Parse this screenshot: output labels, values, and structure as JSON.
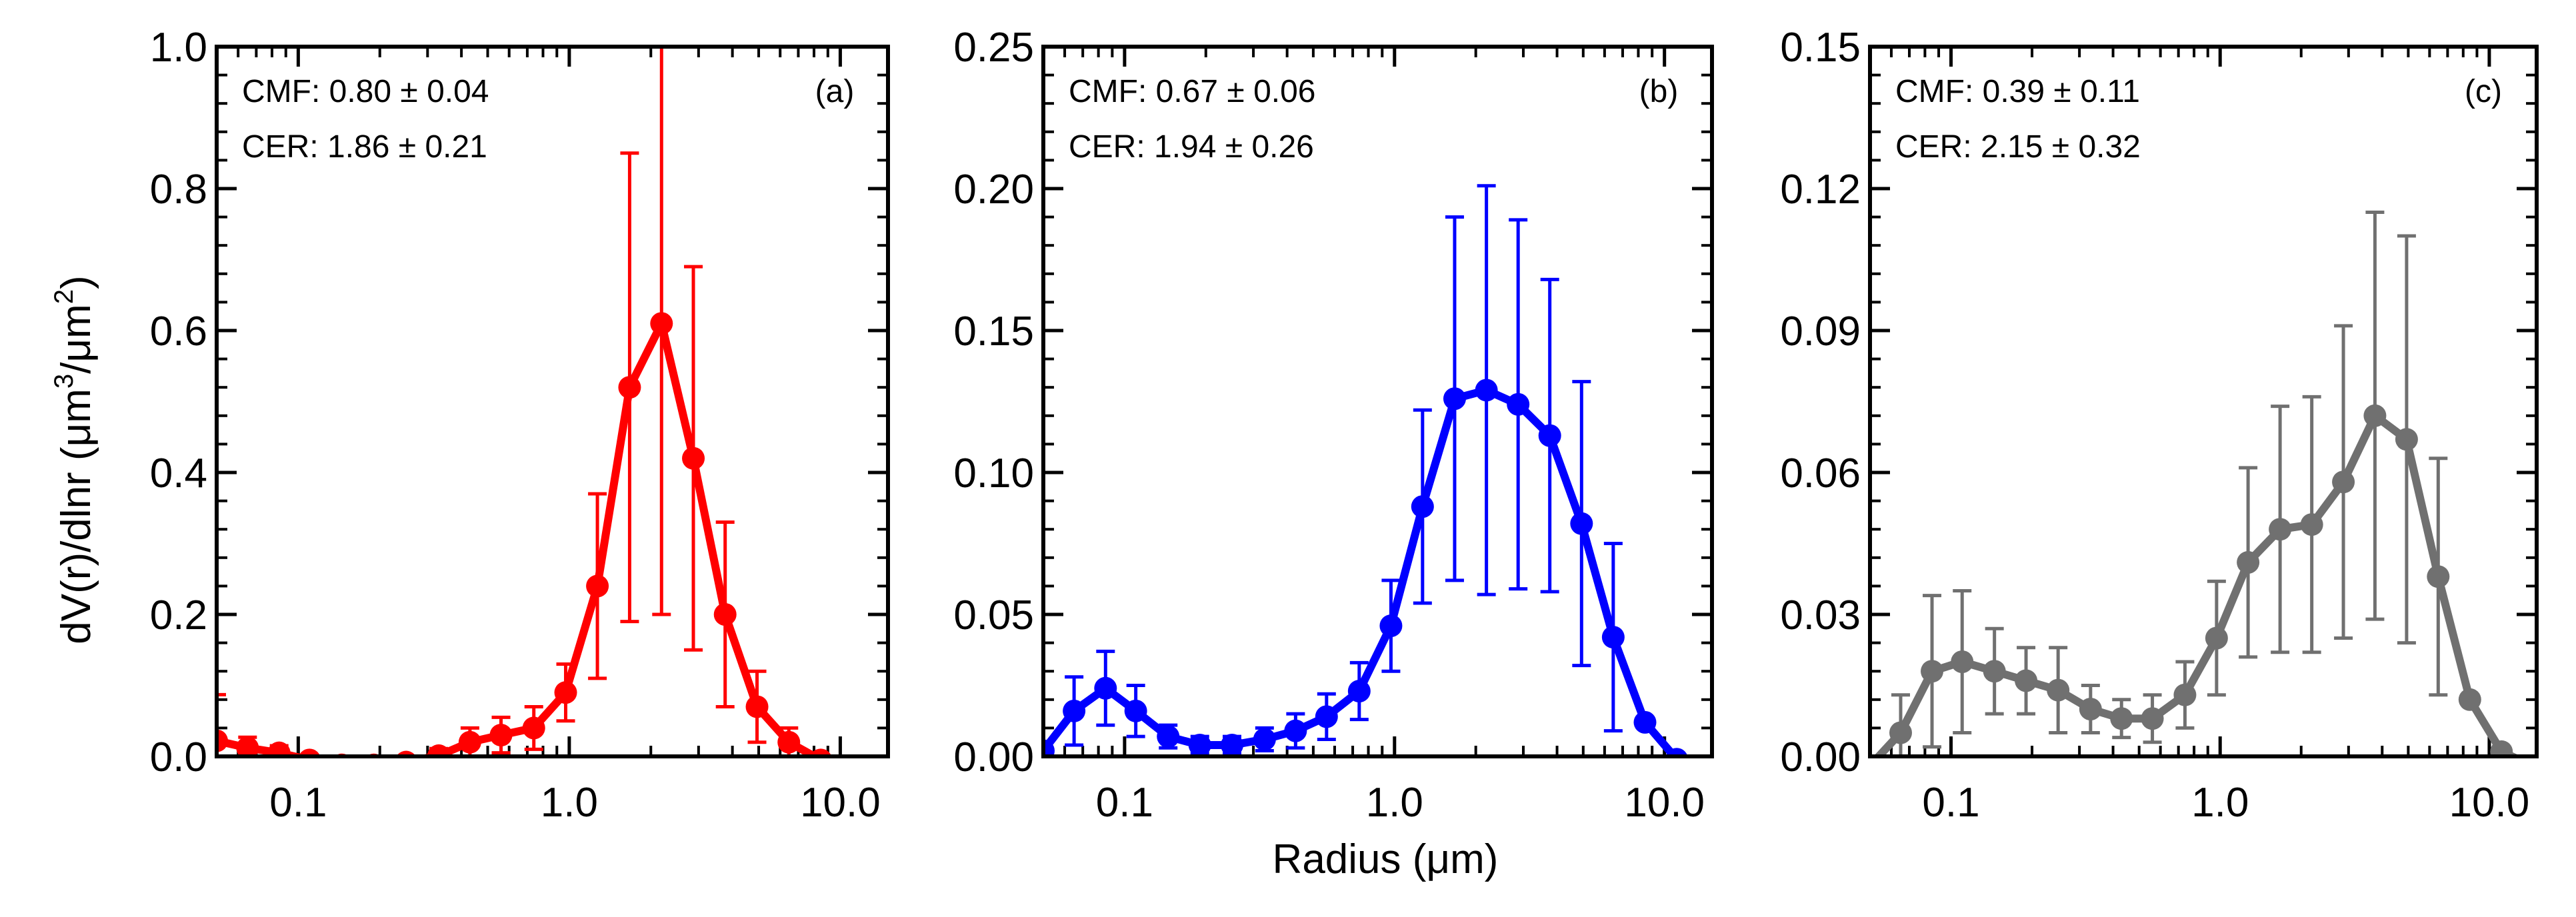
{
  "chart_data": [
    {
      "type": "line",
      "panel": "(a)",
      "color": "#ff0000",
      "xscale": "log",
      "xlim": [
        0.05,
        15
      ],
      "xticks": [
        0.1,
        1.0,
        10.0
      ],
      "xtick_labels": [
        "0.1",
        "1.0",
        "10.0"
      ],
      "ylim": [
        0,
        1.0
      ],
      "yticks": [
        0.0,
        0.2,
        0.4,
        0.6,
        0.8,
        1.0
      ],
      "ytick_labels": [
        "0.0",
        "0.2",
        "0.4",
        "0.6",
        "0.8",
        "1.0"
      ],
      "annotations": {
        "cmf": "CMF: 0.80 ± 0.04",
        "cer": "CER: 1.86 ± 0.21"
      },
      "series": [
        {
          "name": "(a)",
          "x": [
            0.05,
            0.065,
            0.085,
            0.11,
            0.145,
            0.19,
            0.25,
            0.33,
            0.43,
            0.56,
            0.74,
            0.97,
            1.27,
            1.67,
            2.19,
            2.87,
            3.76,
            4.93,
            6.46,
            8.47,
            11.1,
            14.5
          ],
          "y": [
            0.022,
            0.012,
            0.005,
            -0.005,
            -0.012,
            -0.012,
            -0.008,
            0.001,
            0.02,
            0.03,
            0.04,
            0.09,
            0.24,
            0.52,
            0.61,
            0.42,
            0.2,
            0.07,
            0.02,
            -0.005,
            -0.015,
            -0.015
          ],
          "err": [
            0.065,
            0.015,
            0.01,
            0.0,
            0.0,
            0.0,
            0.0,
            0.01,
            0.02,
            0.025,
            0.03,
            0.04,
            0.13,
            0.33,
            0.41,
            0.27,
            0.13,
            0.05,
            0.02,
            0.0,
            0.0,
            0.0
          ]
        }
      ]
    },
    {
      "type": "line",
      "panel": "(b)",
      "color": "#0000ff",
      "xscale": "log",
      "xlim": [
        0.05,
        15
      ],
      "xticks": [
        0.1,
        1.0,
        10.0
      ],
      "xtick_labels": [
        "0.1",
        "1.0",
        "10.0"
      ],
      "xlabel": "Radius (μm)",
      "ylim": [
        0,
        0.25
      ],
      "yticks": [
        0.0,
        0.05,
        0.1,
        0.15,
        0.2,
        0.25
      ],
      "ytick_labels": [
        "0.00",
        "0.05",
        "0.10",
        "0.15",
        "0.20",
        "0.25"
      ],
      "annotations": {
        "cmf": "CMF: 0.67 ± 0.06",
        "cer": "CER: 1.94 ± 0.26"
      },
      "series": [
        {
          "name": "(b)",
          "x": [
            0.05,
            0.065,
            0.085,
            0.11,
            0.145,
            0.19,
            0.25,
            0.33,
            0.43,
            0.56,
            0.74,
            0.97,
            1.27,
            1.67,
            2.19,
            2.87,
            3.76,
            4.93,
            6.46,
            8.47,
            11.1,
            14.5
          ],
          "y": [
            0.002,
            0.016,
            0.024,
            0.016,
            0.007,
            0.004,
            0.004,
            0.006,
            0.009,
            0.014,
            0.023,
            0.046,
            0.088,
            0.126,
            0.129,
            0.124,
            0.113,
            0.082,
            0.042,
            0.012,
            -0.001,
            -0.004
          ],
          "err": [
            0.0,
            0.012,
            0.013,
            0.009,
            0.004,
            0.003,
            0.003,
            0.004,
            0.006,
            0.008,
            0.01,
            0.016,
            0.034,
            0.064,
            0.072,
            0.065,
            0.055,
            0.05,
            0.033,
            0.0,
            0.0,
            0.0
          ]
        }
      ]
    },
    {
      "type": "line",
      "panel": "(c)",
      "color": "#707070",
      "xscale": "log",
      "xlim": [
        0.05,
        15
      ],
      "xticks": [
        0.1,
        1.0,
        10.0
      ],
      "xtick_labels": [
        "0.1",
        "1.0",
        "10.0"
      ],
      "ylim": [
        0,
        0.15
      ],
      "yticks": [
        0.0,
        0.03,
        0.06,
        0.09,
        0.12,
        0.15
      ],
      "ytick_labels": [
        "0.00",
        "0.03",
        "0.06",
        "0.09",
        "0.12",
        "0.15"
      ],
      "annotations": {
        "cmf": "CMF: 0.39 ± 0.11",
        "cer": "CER: 2.15 ± 0.32"
      },
      "series": [
        {
          "name": "(c)",
          "x": [
            0.05,
            0.065,
            0.085,
            0.11,
            0.145,
            0.19,
            0.25,
            0.33,
            0.43,
            0.56,
            0.74,
            0.97,
            1.27,
            1.67,
            2.19,
            2.87,
            3.76,
            4.93,
            6.46,
            8.47,
            11.1,
            14.5
          ],
          "y": [
            -0.002,
            0.005,
            0.018,
            0.02,
            0.018,
            0.016,
            0.014,
            0.01,
            0.008,
            0.008,
            0.013,
            0.025,
            0.041,
            0.048,
            0.049,
            0.058,
            0.072,
            0.067,
            0.038,
            0.012,
            0.001,
            -0.002
          ],
          "err": [
            0.0,
            0.008,
            0.016,
            0.015,
            0.009,
            0.007,
            0.009,
            0.005,
            0.004,
            0.005,
            0.007,
            0.012,
            0.02,
            0.026,
            0.027,
            0.033,
            0.043,
            0.043,
            0.025,
            0.0,
            0.0,
            0.0
          ]
        }
      ]
    }
  ],
  "shared": {
    "ylabel": "dV(r)/dlnr (μm³/μm²)",
    "ylabel_parts": {
      "main": "dV(r)/dlnr (μm",
      "sup1": "3",
      "mid": "/μm",
      "sup2": "2",
      "end": ")"
    },
    "xlabel": "Radius (μm)"
  }
}
